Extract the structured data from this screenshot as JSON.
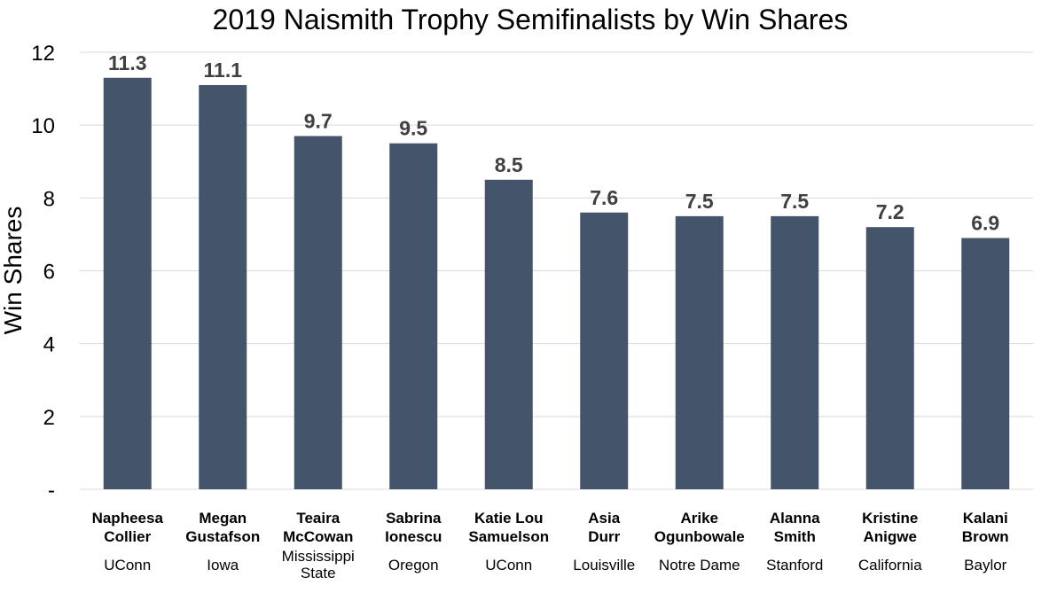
{
  "chart_data": {
    "type": "bar",
    "title": "2019 Naismith Trophy Semifinalists by Win Shares",
    "xlabel": "",
    "ylabel": "Win Shares",
    "ylim": [
      0,
      12
    ],
    "yticks": [
      0,
      2,
      4,
      6,
      8,
      10,
      12
    ],
    "ytick_labels": [
      "-",
      "2",
      "4",
      "6",
      "8",
      "10",
      "12"
    ],
    "grid": true,
    "bar_color": "#44546A",
    "label_color": "#404040",
    "categories": [
      {
        "name": [
          "Napheesa",
          "Collier"
        ],
        "school": [
          "UConn"
        ]
      },
      {
        "name": [
          "Megan",
          "Gustafson"
        ],
        "school": [
          "Iowa"
        ]
      },
      {
        "name": [
          "Teaira",
          "McCowan"
        ],
        "school": [
          "Mississippi",
          "State"
        ]
      },
      {
        "name": [
          "Sabrina",
          "Ionescu"
        ],
        "school": [
          "Oregon"
        ]
      },
      {
        "name": [
          "Katie Lou",
          "Samuelson"
        ],
        "school": [
          "UConn"
        ]
      },
      {
        "name": [
          "Asia",
          "Durr"
        ],
        "school": [
          "Louisville"
        ]
      },
      {
        "name": [
          "Arike",
          "Ogunbowale"
        ],
        "school": [
          "Notre Dame"
        ]
      },
      {
        "name": [
          "Alanna",
          "Smith"
        ],
        "school": [
          "Stanford"
        ]
      },
      {
        "name": [
          "Kristine",
          "Anigwe"
        ],
        "school": [
          "California"
        ]
      },
      {
        "name": [
          "Kalani",
          "Brown"
        ],
        "school": [
          "Baylor"
        ]
      }
    ],
    "values": [
      11.3,
      11.1,
      9.7,
      9.5,
      8.5,
      7.6,
      7.5,
      7.5,
      7.2,
      6.9
    ],
    "value_labels": [
      "11.3",
      "11.1",
      "9.7",
      "9.5",
      "8.5",
      "7.6",
      "7.5",
      "7.5",
      "7.2",
      "6.9"
    ]
  }
}
